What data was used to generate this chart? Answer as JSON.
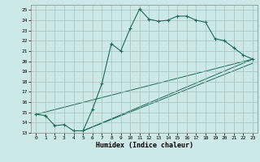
{
  "xlabel": "Humidex (Indice chaleur)",
  "bg_color": "#cde8e8",
  "line_color": "#1a6b5a",
  "grid_color": "#aabfbf",
  "xlim": [
    -0.5,
    23.5
  ],
  "ylim": [
    13,
    25.5
  ],
  "xticks": [
    0,
    1,
    2,
    3,
    4,
    5,
    6,
    7,
    8,
    9,
    10,
    11,
    12,
    13,
    14,
    15,
    16,
    17,
    18,
    19,
    20,
    21,
    22,
    23
  ],
  "yticks": [
    13,
    14,
    15,
    16,
    17,
    18,
    19,
    20,
    21,
    22,
    23,
    24,
    25
  ],
  "line1_x": [
    0,
    1,
    2,
    3,
    4,
    5,
    6,
    7,
    8,
    9,
    10,
    11,
    12,
    13,
    14,
    15,
    16,
    17,
    18,
    19,
    20,
    21,
    22,
    23
  ],
  "line1_y": [
    14.8,
    14.7,
    13.7,
    13.8,
    13.2,
    13.2,
    15.3,
    17.8,
    21.7,
    21.0,
    23.2,
    25.1,
    24.1,
    23.9,
    24.0,
    24.4,
    24.4,
    24.0,
    23.8,
    22.2,
    22.0,
    21.3,
    20.6,
    20.2
  ],
  "line2_x": [
    0,
    23
  ],
  "line2_y": [
    14.8,
    20.2
  ],
  "line3_x": [
    5,
    23
  ],
  "line3_y": [
    13.2,
    20.2
  ],
  "line4_x": [
    5,
    23
  ],
  "line4_y": [
    13.2,
    19.8
  ]
}
